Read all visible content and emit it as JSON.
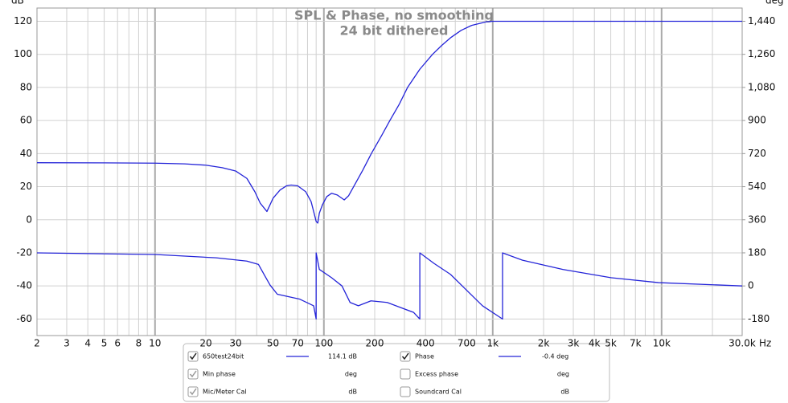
{
  "chart_data": {
    "type": "line",
    "title": "SPL & Phase, no smoothing",
    "subtitle": "24 bit dithered",
    "y_unit": "dB",
    "y2_unit": "deg",
    "x_unit": "Hz",
    "xscale": "log",
    "xlim": [
      2,
      30000
    ],
    "xticks": [
      2,
      3,
      4,
      5,
      6,
      8,
      10,
      20,
      30,
      50,
      70,
      100,
      200,
      400,
      700,
      {
        "value": 1000,
        "label": "1k"
      },
      {
        "value": 2000,
        "label": "2k"
      },
      {
        "value": 3000,
        "label": "3k"
      },
      {
        "value": 4000,
        "label": "4k"
      },
      {
        "value": 5000,
        "label": "5k"
      },
      {
        "value": 7000,
        "label": "7k"
      },
      {
        "value": 10000,
        "label": "10k"
      },
      {
        "value": 30000,
        "label": "30.0k"
      }
    ],
    "xgrid_minor": [
      7,
      9,
      40,
      60,
      80,
      90,
      300,
      500,
      600,
      800,
      900,
      6000,
      8000,
      9000,
      20000
    ],
    "ylim": [
      -70,
      128
    ],
    "yticks": [
      -60,
      -40,
      -20,
      0,
      20,
      40,
      60,
      80,
      100,
      120
    ],
    "y2lim": [
      -270,
      1512
    ],
    "y2ticks": [
      -180,
      0,
      180,
      360,
      540,
      720,
      900,
      {
        "value": 1080,
        "label": "1,080"
      },
      {
        "value": 1260,
        "label": "1,260"
      },
      {
        "value": 1440,
        "label": "1,440"
      }
    ],
    "grid": true,
    "series": [
      {
        "name": "650test24bit",
        "color": "#2424d8",
        "x": [
          2,
          5,
          10,
          15,
          20,
          25,
          30,
          35,
          39,
          42,
          46,
          50,
          55,
          60,
          64,
          70,
          78,
          84,
          88,
          90,
          92,
          94,
          98,
          104,
          111,
          120,
          132,
          140,
          150,
          170,
          191,
          220,
          246,
          280,
          313,
          370,
          440,
          500,
          562,
          650,
          750,
          918,
          1000,
          2000,
          10000,
          30000
        ],
        "values": [
          34.5,
          34.4,
          34.2,
          33.8,
          33,
          31.5,
          29.5,
          25,
          17,
          10,
          5,
          13,
          18,
          20.5,
          21,
          20.5,
          17,
          11,
          3,
          -1,
          -2,
          4,
          9,
          14,
          16,
          15,
          12,
          14.5,
          20,
          30,
          40,
          51,
          60,
          70,
          80,
          91,
          100,
          105.5,
          110,
          114.5,
          117.5,
          119.7,
          120,
          120,
          120,
          120
        ]
      },
      {
        "name": "Phase",
        "color": "#2424d8",
        "axis": "y2",
        "x": [
          2,
          10,
          23,
          35,
          41,
          45,
          48,
          53,
          72,
          87,
          90,
          90,
          94,
          111,
          128,
          143,
          160,
          190,
          237,
          340,
          370,
          370,
          450,
          562,
          660,
          870,
          1143,
          1143,
          1500,
          2600,
          5000,
          9600,
          30000
        ],
        "values": [
          180,
          171,
          153,
          135,
          117,
          50,
          5,
          -45,
          -72,
          -108,
          -180,
          180,
          90,
          45,
          0,
          -90,
          -108,
          -81,
          -90,
          -144,
          -180,
          180,
          122,
          63,
          0,
          -108,
          -180,
          180,
          140,
          90,
          45,
          18,
          0
        ]
      }
    ]
  },
  "legend_panel": {
    "series_checked": [
      true,
      true
    ],
    "series_readouts": [
      "114.1 dB",
      "-0.4 deg"
    ],
    "extras": [
      {
        "label": "Min phase",
        "unit": "deg",
        "checked": true
      },
      {
        "label": "Excess phase",
        "unit": "deg",
        "checked": false
      },
      {
        "label": "Mic/Meter Cal",
        "unit": "dB",
        "checked": true
      },
      {
        "label": "Soundcard Cal",
        "unit": "dB",
        "checked": false
      }
    ]
  }
}
